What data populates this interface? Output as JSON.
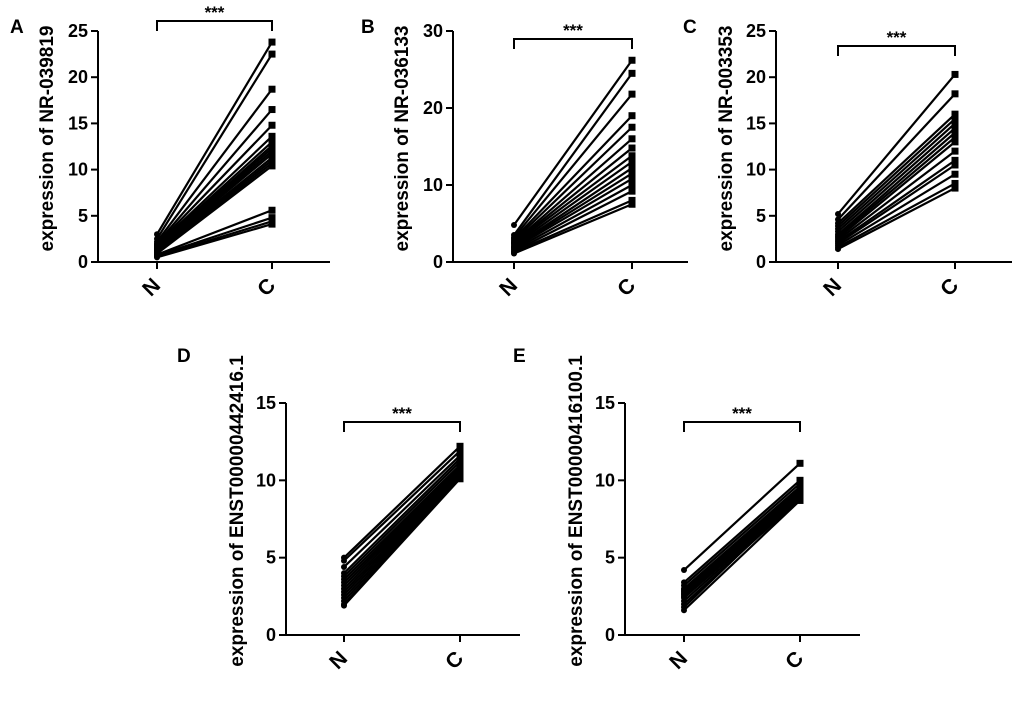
{
  "chart_data": [
    {
      "panel": "A",
      "type": "line",
      "ylabel": "expression of NR-039819",
      "categories": [
        "N",
        "C"
      ],
      "ylim": [
        0,
        25
      ],
      "yticks": [
        0,
        5,
        10,
        15,
        20,
        25
      ],
      "significance": "***",
      "pairs": [
        [
          3.0,
          23.8
        ],
        [
          2.5,
          22.5
        ],
        [
          2.2,
          18.7
        ],
        [
          2.0,
          16.5
        ],
        [
          1.9,
          14.8
        ],
        [
          1.8,
          13.6
        ],
        [
          1.7,
          13.0
        ],
        [
          1.6,
          12.6
        ],
        [
          1.5,
          12.3
        ],
        [
          1.4,
          12.0
        ],
        [
          1.3,
          11.7
        ],
        [
          1.2,
          11.3
        ],
        [
          1.1,
          11.0
        ],
        [
          1.0,
          10.7
        ],
        [
          0.9,
          10.4
        ],
        [
          0.8,
          5.6
        ],
        [
          0.7,
          4.8
        ],
        [
          0.6,
          4.4
        ],
        [
          0.5,
          4.1
        ]
      ]
    },
    {
      "panel": "B",
      "type": "line",
      "ylabel": "expression of NR-036133",
      "categories": [
        "N",
        "C"
      ],
      "ylim": [
        0,
        30
      ],
      "yticks": [
        0,
        10,
        20,
        30
      ],
      "significance": "***",
      "pairs": [
        [
          4.8,
          26.2
        ],
        [
          3.5,
          24.5
        ],
        [
          3.2,
          21.8
        ],
        [
          3.0,
          19.0
        ],
        [
          2.8,
          17.5
        ],
        [
          2.6,
          16.0
        ],
        [
          2.5,
          14.8
        ],
        [
          2.4,
          13.8
        ],
        [
          2.2,
          13.0
        ],
        [
          2.0,
          12.2
        ],
        [
          1.9,
          11.5
        ],
        [
          1.8,
          10.8
        ],
        [
          1.6,
          10.0
        ],
        [
          1.4,
          9.2
        ],
        [
          1.3,
          8.0
        ],
        [
          1.1,
          7.5
        ]
      ]
    },
    {
      "panel": "C",
      "type": "line",
      "ylabel": "expression of NR-003353",
      "categories": [
        "N",
        "C"
      ],
      "ylim": [
        0,
        25
      ],
      "yticks": [
        0,
        5,
        10,
        15,
        20,
        25
      ],
      "significance": "***",
      "pairs": [
        [
          5.2,
          20.3
        ],
        [
          4.6,
          18.2
        ],
        [
          4.2,
          16.0
        ],
        [
          3.9,
          15.5
        ],
        [
          3.6,
          15.0
        ],
        [
          3.3,
          14.5
        ],
        [
          3.0,
          14.0
        ],
        [
          2.8,
          13.5
        ],
        [
          2.6,
          13.0
        ],
        [
          2.4,
          12.0
        ],
        [
          2.2,
          11.0
        ],
        [
          2.0,
          10.5
        ],
        [
          1.8,
          9.5
        ],
        [
          1.6,
          8.5
        ],
        [
          1.4,
          8.0
        ]
      ]
    },
    {
      "panel": "D",
      "type": "line",
      "ylabel": "expression of ENST00000442416.1",
      "categories": [
        "N",
        "C"
      ],
      "ylim": [
        0,
        15
      ],
      "yticks": [
        0,
        5,
        10,
        15
      ],
      "significance": "***",
      "pairs": [
        [
          5.0,
          12.2
        ],
        [
          4.8,
          11.9
        ],
        [
          4.4,
          11.6
        ],
        [
          4.0,
          11.4
        ],
        [
          3.8,
          11.2
        ],
        [
          3.6,
          11.0
        ],
        [
          3.4,
          10.9
        ],
        [
          3.2,
          10.8
        ],
        [
          3.0,
          10.7
        ],
        [
          2.8,
          10.6
        ],
        [
          2.6,
          10.5
        ],
        [
          2.4,
          10.4
        ],
        [
          2.2,
          10.3
        ],
        [
          2.0,
          10.2
        ],
        [
          1.9,
          10.1
        ]
      ]
    },
    {
      "panel": "E",
      "type": "line",
      "ylabel": "expression of ENST00000416100.1",
      "categories": [
        "N",
        "C"
      ],
      "ylim": [
        0,
        15
      ],
      "yticks": [
        0,
        5,
        10,
        15
      ],
      "significance": "***",
      "pairs": [
        [
          4.2,
          11.1
        ],
        [
          3.4,
          10.0
        ],
        [
          3.2,
          9.8
        ],
        [
          3.0,
          9.6
        ],
        [
          2.9,
          9.5
        ],
        [
          2.8,
          9.4
        ],
        [
          2.7,
          9.3
        ],
        [
          2.6,
          9.2
        ],
        [
          2.5,
          9.1
        ],
        [
          2.4,
          9.0
        ],
        [
          2.2,
          8.9
        ],
        [
          2.0,
          8.8
        ],
        [
          1.8,
          9.0
        ],
        [
          1.6,
          8.7
        ]
      ]
    }
  ]
}
